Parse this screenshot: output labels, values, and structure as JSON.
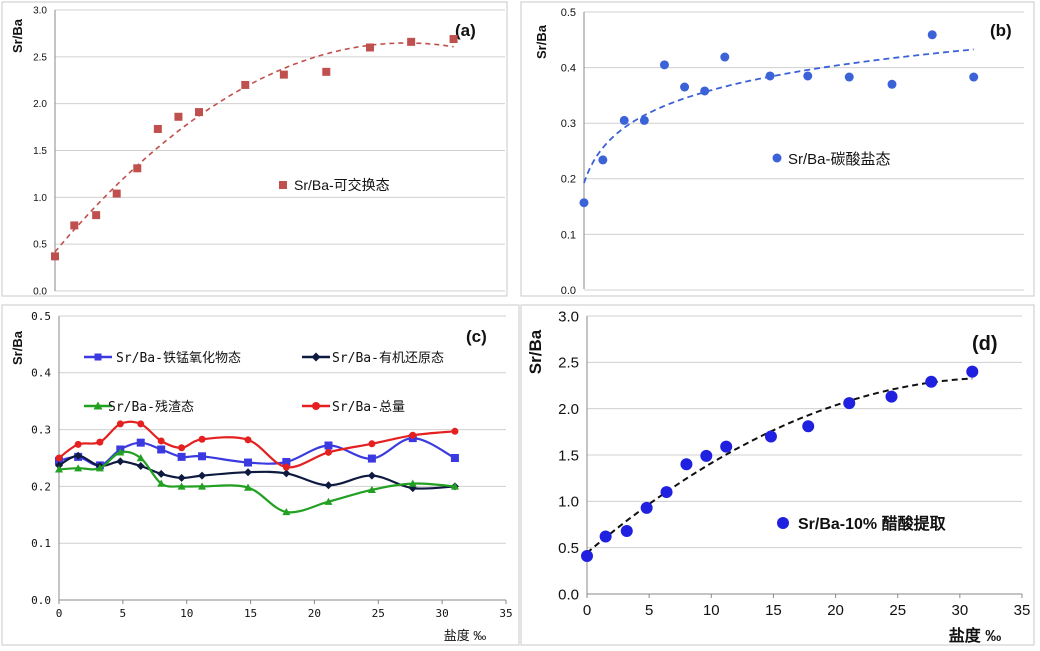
{
  "chart_data": [
    {
      "panel": "a",
      "type": "scatter",
      "panel_label": "(a)",
      "ylabel": "Sr/Ba",
      "xlim": [
        0,
        35
      ],
      "ylim": [
        0,
        3.0
      ],
      "y_ticks": [
        "0.0",
        "0.5",
        "1.0",
        "1.5",
        "2.0",
        "2.5",
        "3.0"
      ],
      "x_ticks_shown": false,
      "grid": "horizontal",
      "legend_position": "center-right",
      "series": [
        {
          "name": "Sr/Ba-可交换态",
          "marker": "square",
          "color": "#C0504D",
          "x": [
            0,
            1.5,
            3.2,
            4.8,
            6.4,
            8.0,
            9.6,
            11.2,
            14.8,
            17.8,
            21.1,
            24.5,
            27.7,
            31.0
          ],
          "y": [
            0.37,
            0.7,
            0.81,
            1.04,
            1.31,
            1.73,
            1.86,
            1.91,
            2.2,
            2.31,
            2.34,
            2.6,
            2.66,
            2.69
          ]
        }
      ],
      "trendline": {
        "style": "dashed",
        "color": "#C0504D",
        "kind": "polynomial"
      }
    },
    {
      "panel": "b",
      "type": "scatter",
      "panel_label": "(b)",
      "ylabel": "Sr/Ba",
      "xlim": [
        0,
        35
      ],
      "ylim": [
        0,
        0.5
      ],
      "y_ticks": [
        "0.0",
        "0.1",
        "0.2",
        "0.3",
        "0.4",
        "0.5"
      ],
      "x_ticks_shown": false,
      "grid": "horizontal",
      "legend_position": "center",
      "series": [
        {
          "name": "Sr/Ba-碳酸盐态",
          "marker": "circle",
          "color": "#3C62D8",
          "x": [
            0,
            1.5,
            3.2,
            4.8,
            6.4,
            8.0,
            9.6,
            11.2,
            14.8,
            17.8,
            21.1,
            24.5,
            27.7,
            31.0
          ],
          "y": [
            0.157,
            0.234,
            0.305,
            0.305,
            0.405,
            0.365,
            0.358,
            0.419,
            0.385,
            0.385,
            0.383,
            0.37,
            0.459,
            0.383
          ]
        }
      ],
      "trendline": {
        "style": "dashed",
        "color": "#3C62D8",
        "kind": "logarithmic"
      }
    },
    {
      "panel": "c",
      "type": "line",
      "panel_label": "(c)",
      "ylabel": "Sr/Ba",
      "xlabel": "盐度 ‰",
      "xlim": [
        0,
        35
      ],
      "ylim": [
        0,
        0.5
      ],
      "x_ticks": [
        "0",
        "5",
        "10",
        "15",
        "20",
        "25",
        "30",
        "35"
      ],
      "y_ticks": [
        "0.0",
        "0.1",
        "0.2",
        "0.3",
        "0.4",
        "0.5"
      ],
      "grid": "horizontal",
      "legend_position": "top",
      "x": [
        0,
        1.5,
        3.2,
        4.8,
        6.4,
        8.0,
        9.6,
        11.2,
        14.8,
        17.8,
        21.1,
        24.5,
        27.7,
        31.0
      ],
      "series": [
        {
          "name": "Sr/Ba-铁锰氧化物态",
          "marker": "square",
          "color": "#3A3AE0",
          "values": [
            0.245,
            0.252,
            0.237,
            0.265,
            0.277,
            0.265,
            0.252,
            0.253,
            0.242,
            0.243,
            0.272,
            0.249,
            0.285,
            0.25
          ]
        },
        {
          "name": "Sr/Ba-有机还原态",
          "marker": "diamond",
          "color": "#0E1A40",
          "values": [
            0.237,
            0.254,
            0.236,
            0.244,
            0.236,
            0.222,
            0.215,
            0.219,
            0.225,
            0.223,
            0.202,
            0.219,
            0.197,
            0.2
          ]
        },
        {
          "name": "Sr/Ba-残渣态",
          "marker": "triangle",
          "color": "#22A022",
          "values": [
            0.23,
            0.232,
            0.232,
            0.26,
            0.25,
            0.205,
            0.2,
            0.2,
            0.198,
            0.155,
            0.173,
            0.194,
            0.205,
            0.2
          ]
        },
        {
          "name": "Sr/Ba-总量",
          "marker": "circle",
          "color": "#E52020",
          "values": [
            0.25,
            0.274,
            0.278,
            0.31,
            0.31,
            0.28,
            0.268,
            0.283,
            0.282,
            0.234,
            0.26,
            0.275,
            0.29,
            0.297
          ]
        }
      ]
    },
    {
      "panel": "d",
      "type": "scatter",
      "panel_label": "(d)",
      "ylabel": "Sr/Ba",
      "xlabel": "盐度 ‰",
      "xlim": [
        0,
        35
      ],
      "ylim": [
        0,
        3.0
      ],
      "x_ticks": [
        "0",
        "5",
        "10",
        "15",
        "20",
        "25",
        "30",
        "35"
      ],
      "y_ticks": [
        "0.0",
        "0.5",
        "1.0",
        "1.5",
        "2.0",
        "2.5",
        "3.0"
      ],
      "grid": "horizontal",
      "legend_position": "bottom-right",
      "series": [
        {
          "name": "Sr/Ba-10% 醋酸提取",
          "marker": "circle",
          "color": "#2020E0",
          "x": [
            0,
            1.5,
            3.2,
            4.8,
            6.4,
            8.0,
            9.6,
            11.2,
            14.8,
            17.8,
            21.1,
            24.5,
            27.7,
            31.0
          ],
          "y": [
            0.41,
            0.62,
            0.68,
            0.93,
            1.1,
            1.4,
            1.49,
            1.59,
            1.7,
            1.81,
            2.06,
            2.13,
            2.29,
            2.4
          ]
        }
      ],
      "trendline": {
        "style": "dashed",
        "color": "#111111",
        "kind": "polynomial"
      }
    }
  ]
}
